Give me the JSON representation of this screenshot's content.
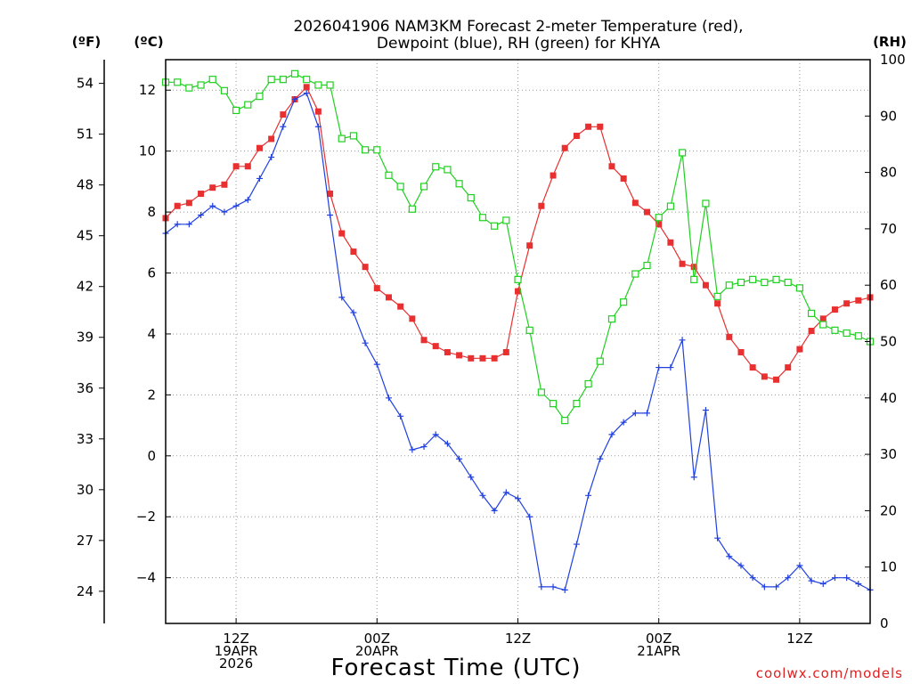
{
  "chart_data": {
    "type": "line",
    "title": [
      "2026041906 NAM3KM Forecast 2-meter Temperature (red),",
      "Dewpoint (blue), RH (green) for KHYA"
    ],
    "xlabel": "Forecast Time (UTC)",
    "credit": "coolwx.com/models",
    "units": {
      "fahrenheit": "(ºF)",
      "celsius": "(ºC)",
      "rh": "(RH)"
    },
    "x_start_hour": 6,
    "x_end_hour": 66,
    "x_ticks": [
      {
        "hour": 12,
        "lines": [
          "12Z",
          "19APR",
          "2026"
        ]
      },
      {
        "hour": 24,
        "lines": [
          "00Z",
          "20APR"
        ]
      },
      {
        "hour": 36,
        "lines": [
          "12Z"
        ]
      },
      {
        "hour": 48,
        "lines": [
          "00Z",
          "21APR"
        ]
      },
      {
        "hour": 60,
        "lines": [
          "12Z"
        ]
      }
    ],
    "y_celsius": {
      "lim": [
        -5.5,
        13.0
      ],
      "ticks": [
        -4,
        -2,
        0,
        2,
        4,
        6,
        8,
        10,
        12
      ]
    },
    "y_fahrenheit": {
      "ticks": [
        24,
        27,
        30,
        33,
        36,
        39,
        42,
        45,
        48,
        51,
        54
      ]
    },
    "y_rh": {
      "lim": [
        0,
        100
      ],
      "ticks": [
        0,
        10,
        20,
        30,
        40,
        50,
        60,
        70,
        80,
        90,
        100
      ]
    },
    "series": [
      {
        "name": "2-meter Temperature",
        "unit": "°C",
        "color": "#e83030",
        "marker": "filled-square",
        "hours": [
          6,
          7,
          8,
          9,
          10,
          11,
          12,
          13,
          14,
          15,
          16,
          17,
          18,
          19,
          20,
          21,
          22,
          23,
          24,
          25,
          26,
          27,
          28,
          29,
          30,
          31,
          32,
          33,
          34,
          35,
          36,
          37,
          38,
          39,
          40,
          41,
          42,
          43,
          44,
          45,
          46,
          47,
          48,
          49,
          50,
          51,
          52,
          53,
          54,
          55,
          56,
          57,
          58,
          59,
          60,
          61,
          62,
          63,
          64,
          65,
          66
        ],
        "values": [
          7.8,
          8.2,
          8.3,
          8.6,
          8.8,
          8.9,
          9.5,
          9.5,
          10.1,
          10.4,
          11.2,
          11.7,
          12.1,
          11.3,
          8.6,
          7.3,
          6.7,
          6.2,
          5.5,
          5.2,
          4.9,
          4.5,
          3.8,
          3.6,
          3.4,
          3.3,
          3.2,
          3.2,
          3.2,
          3.4,
          5.4,
          6.9,
          8.2,
          9.2,
          10.1,
          10.5,
          10.8,
          10.8,
          9.5,
          9.1,
          8.3,
          8.0,
          7.6,
          7.0,
          6.3,
          6.2,
          5.6,
          5.0,
          3.9,
          3.4,
          2.9,
          2.6,
          2.5,
          2.9,
          3.5,
          4.1,
          4.5,
          4.8,
          5.0,
          5.1,
          5.2
        ]
      },
      {
        "name": "Dewpoint",
        "unit": "°C",
        "color": "#2040e0",
        "marker": "plus",
        "hours": [
          6,
          7,
          8,
          9,
          10,
          11,
          12,
          13,
          14,
          15,
          16,
          17,
          18,
          19,
          20,
          21,
          22,
          23,
          24,
          25,
          26,
          27,
          28,
          29,
          30,
          31,
          32,
          33,
          34,
          35,
          36,
          37,
          38,
          39,
          40,
          41,
          42,
          43,
          44,
          45,
          46,
          47,
          48,
          49,
          50,
          51,
          52,
          53,
          54,
          55,
          56,
          57,
          58,
          59,
          60,
          61,
          62,
          63,
          64,
          65,
          66
        ],
        "values": [
          7.3,
          7.6,
          7.6,
          7.9,
          8.2,
          8.0,
          8.2,
          8.4,
          9.1,
          9.8,
          10.8,
          11.7,
          11.9,
          10.8,
          7.9,
          5.2,
          4.7,
          3.7,
          3.0,
          1.9,
          1.3,
          0.2,
          0.3,
          0.7,
          0.4,
          -0.1,
          -0.7,
          -1.3,
          -1.8,
          -1.2,
          -1.4,
          -2.0,
          -4.3,
          -4.3,
          -4.4,
          -2.9,
          -1.3,
          -0.1,
          0.7,
          1.1,
          1.4,
          1.4,
          2.9,
          2.9,
          3.8,
          -0.7,
          1.5,
          -2.7,
          -3.3,
          -3.6,
          -4.0,
          -4.3,
          -4.3,
          -4.0,
          -3.6,
          -4.1,
          -4.2,
          -4.0,
          -4.0,
          -4.2,
          -4.4
        ]
      },
      {
        "name": "RH",
        "unit": "%",
        "color": "#20d020",
        "marker": "open-square",
        "hours": [
          6,
          7,
          8,
          9,
          10,
          11,
          12,
          13,
          14,
          15,
          16,
          17,
          18,
          19,
          20,
          21,
          22,
          23,
          24,
          25,
          26,
          27,
          28,
          29,
          30,
          31,
          32,
          33,
          34,
          35,
          36,
          37,
          38,
          39,
          40,
          41,
          42,
          43,
          44,
          45,
          46,
          47,
          48,
          49,
          50,
          51,
          52,
          53,
          54,
          55,
          56,
          57,
          58,
          59,
          60,
          61,
          62,
          63,
          64,
          65,
          66
        ],
        "values": [
          96,
          96,
          95,
          95.5,
          96.5,
          94.5,
          91,
          92,
          93.5,
          96.5,
          96.5,
          97.5,
          96.5,
          95.5,
          95.5,
          86,
          86.5,
          84,
          84,
          79.5,
          77.5,
          73.5,
          77.5,
          81,
          80.5,
          78,
          75.5,
          72,
          70.5,
          71.5,
          61,
          52,
          41,
          39,
          36,
          39,
          42.5,
          46.5,
          54,
          57,
          62,
          63.5,
          72,
          74,
          83.5,
          61,
          74.5,
          58,
          60,
          60.5,
          61,
          60.5,
          61,
          60.5,
          59.5,
          55,
          53,
          52,
          51.5,
          51,
          50
        ]
      }
    ]
  }
}
